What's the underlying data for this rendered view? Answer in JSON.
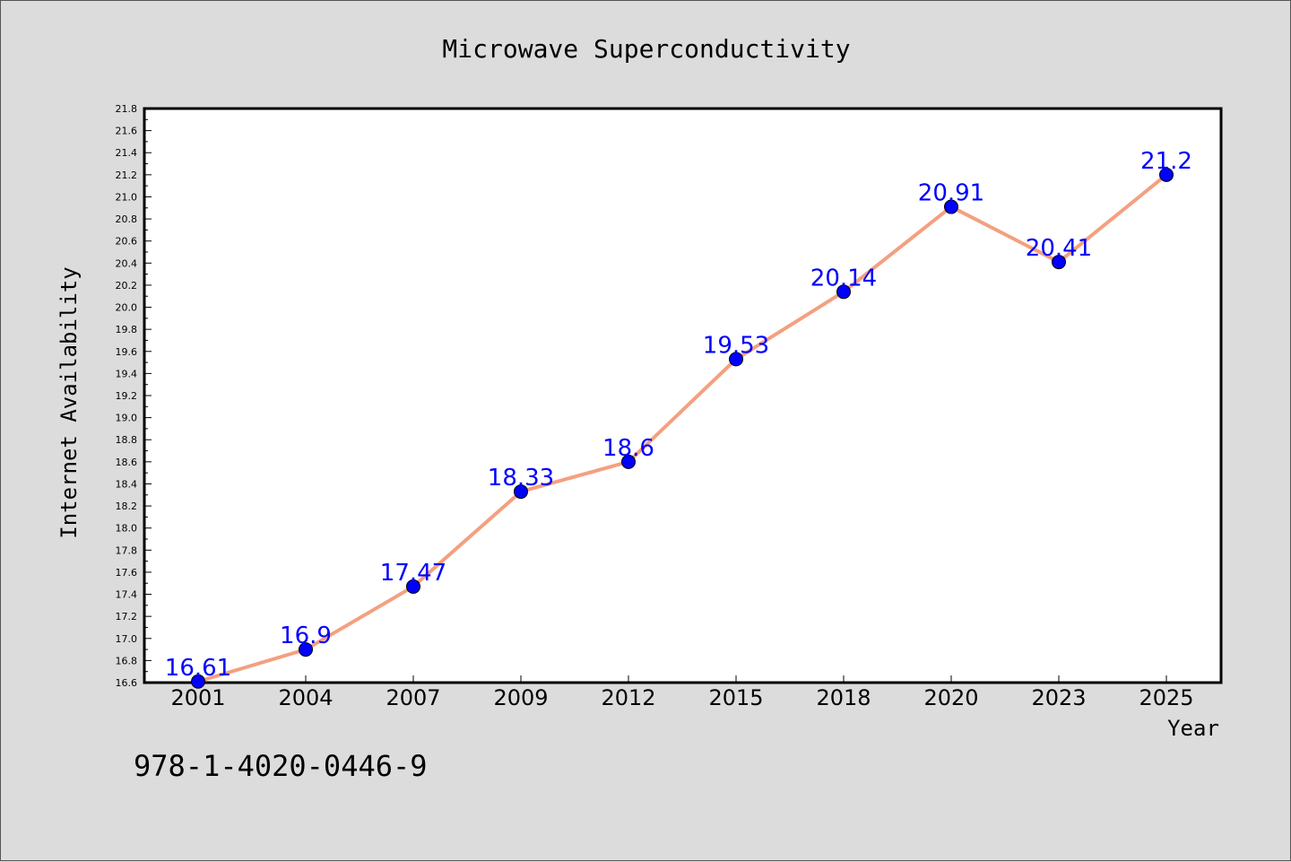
{
  "isbn": "978-1-4020-0446-9",
  "colors": {
    "background": "#dcdcdc",
    "plot_background": "#ffffff",
    "line": "#f4a07f",
    "marker": "#0000ff",
    "label": "#0000ff"
  },
  "chart_data": {
    "type": "line",
    "title": "Microwave Superconductivity",
    "xlabel": "Year",
    "ylabel": "Internet Availability",
    "categories": [
      "2001",
      "2004",
      "2007",
      "2009",
      "2012",
      "2015",
      "2018",
      "2020",
      "2023",
      "2025"
    ],
    "series": [
      {
        "values": [
          16.61,
          16.9,
          17.47,
          18.33,
          18.6,
          19.53,
          20.14,
          20.91,
          20.41,
          21.2
        ]
      }
    ],
    "data_labels": [
      "16.61",
      "16.9",
      "17.47",
      "18.33",
      "18.6",
      "19.53",
      "20.14",
      "20.91",
      "20.41",
      "21.2"
    ],
    "ylim": [
      16.6,
      21.8
    ],
    "yticks": [
      "16.6",
      "16.8",
      "17.0",
      "17.2",
      "17.4",
      "17.6",
      "17.8",
      "18.0",
      "18.2",
      "18.4",
      "18.6",
      "18.8",
      "19.0",
      "19.2",
      "19.4",
      "19.6",
      "19.8",
      "20.0",
      "20.2",
      "20.4",
      "20.6",
      "20.8",
      "21.0",
      "21.2",
      "21.4",
      "21.6",
      "21.8"
    ],
    "grid": false,
    "legend": "none"
  }
}
